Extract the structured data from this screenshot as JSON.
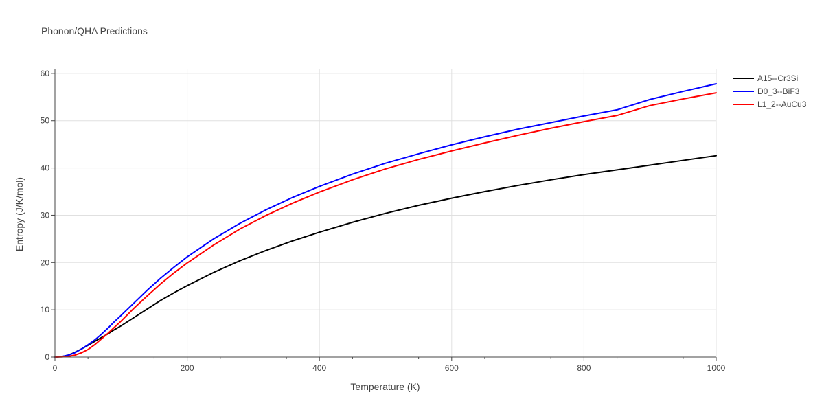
{
  "chart_data": {
    "type": "line",
    "title": "Phonon/QHA Predictions",
    "xlabel": "Temperature (K)",
    "ylabel": "Entropy (J/K/mol)",
    "xlim": [
      0,
      1000
    ],
    "ylim": [
      0,
      61
    ],
    "xticks": [
      0,
      200,
      400,
      600,
      800,
      1000
    ],
    "yticks": [
      0,
      10,
      20,
      30,
      40,
      50,
      60
    ],
    "grid": true,
    "legend_position": "top-right",
    "series": [
      {
        "name": "A15--Cr3Si",
        "color": "#000000",
        "x": [
          0,
          10,
          20,
          30,
          40,
          50,
          60,
          70,
          80,
          90,
          100,
          120,
          140,
          160,
          180,
          200,
          240,
          280,
          320,
          360,
          400,
          450,
          500,
          550,
          600,
          650,
          700,
          750,
          800,
          850,
          900,
          950,
          1000
        ],
        "y": [
          0,
          0.1,
          0.4,
          1.0,
          1.7,
          2.5,
          3.3,
          4.1,
          4.9,
          5.8,
          6.6,
          8.4,
          10.2,
          12.0,
          13.6,
          15.1,
          17.9,
          20.4,
          22.6,
          24.6,
          26.4,
          28.5,
          30.4,
          32.1,
          33.6,
          35.0,
          36.3,
          37.5,
          38.6,
          39.6,
          40.6,
          41.6,
          42.6
        ]
      },
      {
        "name": "D0_3--BiF3",
        "color": "#0000ff",
        "x": [
          0,
          10,
          20,
          30,
          40,
          50,
          60,
          70,
          80,
          90,
          100,
          120,
          140,
          160,
          180,
          200,
          240,
          280,
          320,
          360,
          400,
          450,
          500,
          550,
          600,
          650,
          700,
          750,
          800,
          850,
          900,
          950,
          1000
        ],
        "y": [
          0,
          0.1,
          0.4,
          0.9,
          1.7,
          2.6,
          3.6,
          4.8,
          6.1,
          7.5,
          8.8,
          11.5,
          14.2,
          16.7,
          19.0,
          21.2,
          25.0,
          28.3,
          31.2,
          33.8,
          36.1,
          38.7,
          41.0,
          43.0,
          44.9,
          46.6,
          48.2,
          49.6,
          51.0,
          52.3,
          54.5,
          56.2,
          57.8
        ]
      },
      {
        "name": "L1_2--AuCu3",
        "color": "#ff0000",
        "x": [
          0,
          10,
          20,
          30,
          40,
          50,
          60,
          70,
          80,
          90,
          100,
          120,
          140,
          160,
          180,
          200,
          240,
          280,
          320,
          360,
          400,
          450,
          500,
          550,
          600,
          650,
          700,
          750,
          800,
          850,
          900,
          950,
          1000
        ],
        "y": [
          0,
          0.03,
          0.15,
          0.4,
          0.9,
          1.6,
          2.6,
          3.8,
          5.0,
          6.3,
          7.6,
          10.4,
          13.0,
          15.5,
          17.8,
          19.9,
          23.7,
          27.1,
          30.0,
          32.6,
          34.9,
          37.5,
          39.8,
          41.8,
          43.6,
          45.3,
          46.9,
          48.4,
          49.8,
          51.1,
          53.2,
          54.6,
          55.9
        ]
      }
    ]
  }
}
